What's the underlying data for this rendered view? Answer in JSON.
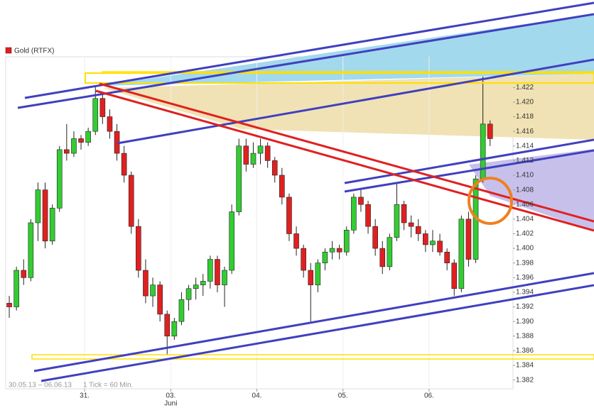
{
  "chart_data": {
    "type": "candlestick",
    "title": "Gold (RTFX)",
    "legend_color": "#e02020",
    "period": "30.05.13 – 06.06.13",
    "interval": "1 Tick = 60 Min.",
    "up_color": "#33cc33",
    "down_color": "#e02020",
    "ylim": [
      1.3808,
      1.4262
    ],
    "yticks": [
      1.382,
      1.384,
      1.386,
      1.388,
      {
        "value": 1.39,
        "label": "1.390"
      },
      1.392,
      1.394,
      1.396,
      1.398,
      {
        "value": 1.4,
        "label": "1.400"
      },
      1.402,
      1.404,
      1.406,
      1.408,
      {
        "value": 1.41,
        "label": "1.410"
      },
      1.412,
      1.414,
      1.416,
      1.418,
      {
        "value": 1.42,
        "label": "1.420"
      },
      1.422
    ],
    "days": [
      {
        "label": null,
        "candles": [
          [
            1.3925,
            1.3935,
            1.3905,
            1.392
          ],
          [
            1.392,
            1.3975,
            1.3915,
            1.397
          ],
          [
            1.397,
            1.3985,
            1.395,
            1.396
          ],
          [
            1.396,
            1.404,
            1.3955,
            1.4035
          ],
          [
            1.4035,
            1.409,
            1.401,
            1.408
          ],
          [
            1.408,
            1.409,
            1.4,
            1.401
          ],
          [
            1.401,
            1.406,
            1.4005,
            1.4055
          ],
          [
            1.4055,
            1.414,
            1.405,
            1.4135
          ],
          [
            1.4135,
            1.417,
            1.412,
            1.413
          ],
          [
            1.413,
            1.416,
            1.4125,
            1.415
          ],
          [
            1.415,
            1.4155,
            1.4135,
            1.4145
          ]
        ]
      },
      {
        "label": "31.",
        "candles": [
          [
            1.4145,
            1.4165,
            1.414,
            1.416
          ],
          [
            1.416,
            1.4223,
            1.4155,
            1.4205
          ],
          [
            1.4205,
            1.421,
            1.417,
            1.418
          ],
          [
            1.418,
            1.419,
            1.415,
            1.416
          ],
          [
            1.416,
            1.417,
            1.412,
            1.413
          ],
          [
            1.413,
            1.414,
            1.409,
            1.41
          ],
          [
            1.41,
            1.4105,
            1.402,
            1.403
          ],
          [
            1.403,
            1.404,
            1.396,
            1.397
          ],
          [
            1.397,
            1.3985,
            1.3925,
            1.3935
          ],
          [
            1.3935,
            1.396,
            1.392,
            1.395
          ],
          [
            1.395,
            1.3955,
            1.39,
            1.391
          ],
          [
            1.391,
            1.3915,
            1.3855,
            1.388
          ]
        ]
      },
      {
        "label": "03.",
        "sublabel": "Juni",
        "candles": [
          [
            1.388,
            1.3905,
            1.3875,
            1.39
          ],
          [
            1.39,
            1.394,
            1.3895,
            1.393
          ],
          [
            1.393,
            1.395,
            1.3915,
            1.3945
          ],
          [
            1.3945,
            1.396,
            1.393,
            1.395
          ],
          [
            1.395,
            1.3965,
            1.3935,
            1.3955
          ],
          [
            1.3955,
            1.399,
            1.3945,
            1.3985
          ],
          [
            1.3985,
            1.399,
            1.394,
            1.395
          ],
          [
            1.395,
            1.3975,
            1.392,
            1.397
          ],
          [
            1.397,
            1.406,
            1.3965,
            1.405
          ],
          [
            1.405,
            1.415,
            1.4045,
            1.414
          ],
          [
            1.414,
            1.415,
            1.4105,
            1.4115
          ],
          [
            1.4115,
            1.4145,
            1.411,
            1.413
          ]
        ]
      },
      {
        "label": "04.",
        "candles": [
          [
            1.413,
            1.415,
            1.4115,
            1.414
          ],
          [
            1.414,
            1.4145,
            1.411,
            1.412
          ],
          [
            1.412,
            1.4125,
            1.409,
            1.41
          ],
          [
            1.41,
            1.411,
            1.406,
            1.407
          ],
          [
            1.407,
            1.4075,
            1.401,
            1.402
          ],
          [
            1.402,
            1.403,
            1.399,
            1.4
          ],
          [
            1.4,
            1.4005,
            1.396,
            1.397
          ],
          [
            1.397,
            1.398,
            1.39,
            1.395
          ],
          [
            1.395,
            1.3985,
            1.394,
            1.398
          ],
          [
            1.398,
            1.4,
            1.397,
            1.3995
          ],
          [
            1.3995,
            1.401,
            1.3985,
            1.4
          ],
          [
            1.4,
            1.4005,
            1.3985,
            1.3995
          ]
        ]
      },
      {
        "label": "05.",
        "candles": [
          [
            1.3995,
            1.403,
            1.399,
            1.4025
          ],
          [
            1.4025,
            1.4075,
            1.402,
            1.407
          ],
          [
            1.407,
            1.408,
            1.405,
            1.406
          ],
          [
            1.406,
            1.4065,
            1.402,
            1.403
          ],
          [
            1.403,
            1.404,
            1.399,
            1.4
          ],
          [
            1.4,
            1.401,
            1.3965,
            1.3975
          ],
          [
            1.3975,
            1.402,
            1.397,
            1.4015
          ],
          [
            1.4015,
            1.409,
            1.401,
            1.406
          ],
          [
            1.406,
            1.4065,
            1.4025,
            1.4035
          ],
          [
            1.4035,
            1.4045,
            1.4015,
            1.403
          ],
          [
            1.403,
            1.404,
            1.401,
            1.402
          ],
          [
            1.402,
            1.4025,
            1.3995,
            1.4005
          ]
        ]
      },
      {
        "label": "06.",
        "candles": [
          [
            1.4005,
            1.4025,
            1.3995,
            1.401
          ],
          [
            1.401,
            1.402,
            1.399,
            1.3995
          ],
          [
            1.3995,
            1.4,
            1.397,
            1.398
          ],
          [
            1.398,
            1.3985,
            1.3935,
            1.3945
          ],
          [
            1.3945,
            1.4045,
            1.394,
            1.404
          ],
          [
            1.404,
            1.405,
            1.3975,
            1.3985
          ],
          [
            1.3985,
            1.41,
            1.398,
            1.4095
          ],
          [
            1.4095,
            1.4235,
            1.409,
            1.417
          ],
          [
            1.417,
            1.4175,
            1.414,
            1.415
          ]
        ]
      }
    ]
  }
}
